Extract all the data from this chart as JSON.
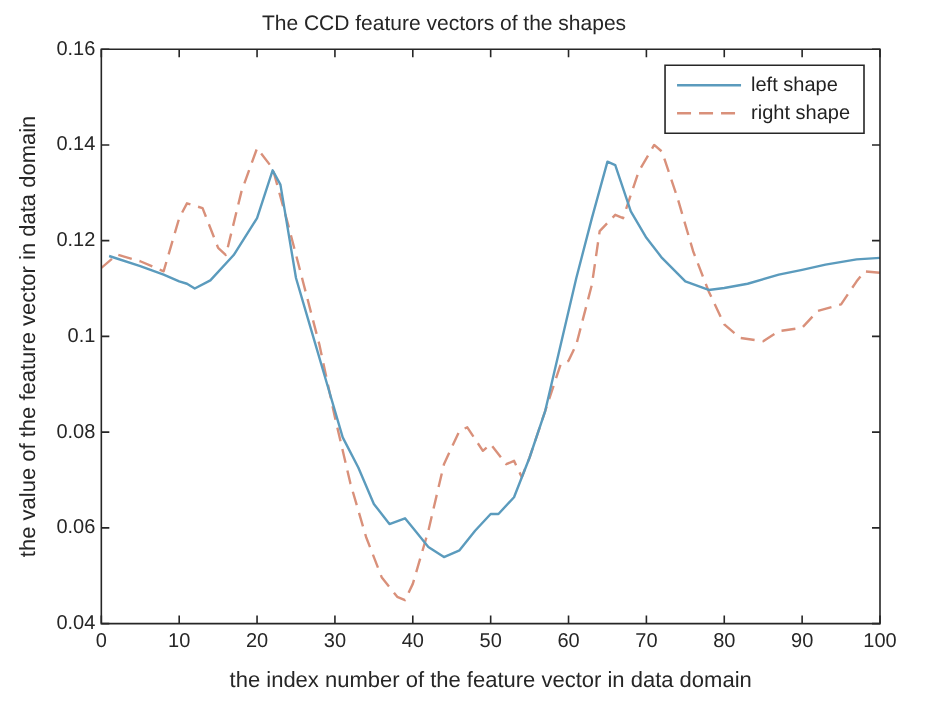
{
  "chart_data": {
    "type": "line",
    "title": "The CCD feature vectors of the shapes",
    "xlabel": "the index number of the feature vector in data domain",
    "ylabel": "the value of the feature vector in data domain",
    "xlim": [
      0,
      100
    ],
    "xticks": [
      0,
      10,
      20,
      30,
      40,
      50,
      60,
      70,
      80,
      90,
      100
    ],
    "ylim": [
      0.04,
      0.16
    ],
    "yticks": [
      0.04,
      0.06,
      0.08,
      0.1,
      0.12,
      0.14,
      0.16
    ],
    "grid": false,
    "legend": "top right",
    "series": [
      {
        "name": "left shape",
        "color": "#5b9bbd",
        "line_style": "solid",
        "x": [
          1,
          5,
          8,
          10,
          11,
          12,
          14,
          17,
          20,
          22,
          23,
          25,
          27,
          29,
          31,
          33,
          35,
          37,
          39,
          40,
          42,
          44,
          46,
          48,
          50,
          51,
          53,
          55,
          57,
          59,
          61,
          63,
          65,
          66,
          68,
          70,
          72,
          75,
          78,
          80,
          83,
          87,
          90,
          93,
          97,
          100
        ],
        "values": [
          0.1168,
          0.1147,
          0.1129,
          0.1115,
          0.111,
          0.11,
          0.1117,
          0.117,
          0.1247,
          0.1347,
          0.1317,
          0.1122,
          0.1011,
          0.09,
          0.0789,
          0.0726,
          0.065,
          0.0608,
          0.062,
          0.06,
          0.056,
          0.0539,
          0.0553,
          0.0594,
          0.0629,
          0.0629,
          0.0664,
          0.0747,
          0.0844,
          0.0983,
          0.1122,
          0.1247,
          0.1365,
          0.1358,
          0.1261,
          0.1206,
          0.1164,
          0.1115,
          0.1097,
          0.1101,
          0.111,
          0.1129,
          0.1139,
          0.115,
          0.1161,
          0.1164
        ]
      },
      {
        "name": "right shape",
        "color": "#d9907a",
        "line_style": "dashed",
        "x": [
          0,
          2,
          5,
          7,
          8,
          10,
          11,
          13,
          15,
          16,
          18,
          20,
          22,
          24,
          26,
          28,
          30,
          32,
          34,
          36,
          38,
          39,
          40,
          42,
          44,
          46,
          47,
          49,
          50,
          52,
          53,
          54,
          55,
          57,
          59,
          60,
          61,
          63,
          64,
          66,
          67,
          69,
          71,
          72,
          74,
          76,
          78,
          80,
          82,
          85,
          87,
          90,
          92,
          95,
          97,
          98,
          100
        ],
        "values": [
          0.1143,
          0.1171,
          0.1157,
          0.1143,
          0.1136,
          0.1247,
          0.1278,
          0.1268,
          0.1185,
          0.117,
          0.1303,
          0.1393,
          0.1351,
          0.1233,
          0.1108,
          0.0983,
          0.0831,
          0.0692,
          0.0581,
          0.0497,
          0.0456,
          0.0449,
          0.0483,
          0.0594,
          0.0733,
          0.0803,
          0.081,
          0.0761,
          0.0775,
          0.0733,
          0.074,
          0.0706,
          0.0747,
          0.0844,
          0.0942,
          0.0949,
          0.0983,
          0.1108,
          0.122,
          0.1254,
          0.1247,
          0.1344,
          0.14,
          0.1386,
          0.1289,
          0.1178,
          0.1094,
          0.1025,
          0.0997,
          0.099,
          0.1011,
          0.1018,
          0.1053,
          0.1067,
          0.1115,
          0.1136,
          0.1133
        ]
      }
    ]
  }
}
